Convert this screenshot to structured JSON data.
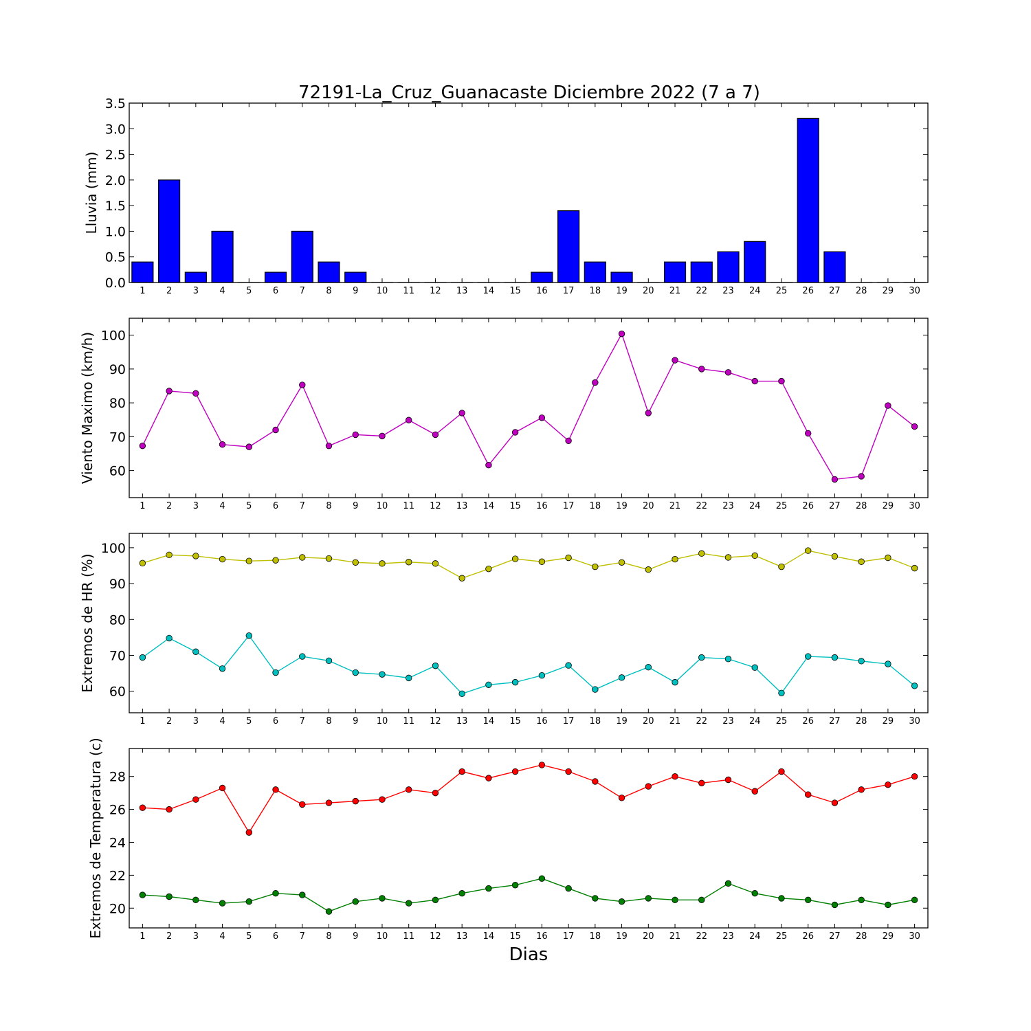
{
  "title": "72191-La_Cruz_Guanacaste Diciembre 2022  (7 a 7)",
  "xlabel": "Dias",
  "chart_data": [
    {
      "type": "bar",
      "ylabel": "Lluvia (mm)",
      "ylim": [
        0,
        3.5
      ],
      "yticks": [
        "0.0",
        "0.5",
        "1.0",
        "1.5",
        "2.0",
        "2.5",
        "3.0",
        "3.5"
      ],
      "x": [
        1,
        2,
        3,
        4,
        5,
        6,
        7,
        8,
        9,
        10,
        11,
        12,
        13,
        14,
        15,
        16,
        17,
        18,
        19,
        20,
        21,
        22,
        23,
        24,
        25,
        26,
        27,
        28,
        29,
        30
      ],
      "series": [
        {
          "color": "#0000ff",
          "values": [
            0.4,
            2.0,
            0.2,
            1.0,
            0,
            0.2,
            1.0,
            0.4,
            0.2,
            0,
            0,
            0,
            0,
            0,
            0,
            0.2,
            1.4,
            0.4,
            0.2,
            0,
            0.4,
            0.4,
            0.6,
            0.8,
            0,
            3.2,
            0.6,
            0,
            0,
            0
          ]
        }
      ]
    },
    {
      "type": "line",
      "ylabel": "Viento Maximo (km/h)",
      "ylim": [
        52,
        105
      ],
      "yticks": [
        "60",
        "70",
        "80",
        "90",
        "100"
      ],
      "x": [
        1,
        2,
        3,
        4,
        5,
        6,
        7,
        8,
        9,
        10,
        11,
        12,
        13,
        14,
        15,
        16,
        17,
        18,
        19,
        20,
        21,
        22,
        23,
        24,
        25,
        26,
        27,
        28,
        29,
        30
      ],
      "series": [
        {
          "color": "#bf00bf",
          "values": [
            67.3,
            83.5,
            82.8,
            67.7,
            67.0,
            72.0,
            85.3,
            67.3,
            70.6,
            70.2,
            74.9,
            70.6,
            77.0,
            61.6,
            71.3,
            75.6,
            68.8,
            86.0,
            100.4,
            77.0,
            92.6,
            90.0,
            89.0,
            86.4,
            86.4,
            71.0,
            57.4,
            58.3,
            79.2,
            73.0
          ]
        }
      ]
    },
    {
      "type": "line",
      "ylabel": "Extremos de HR (%)",
      "ylim": [
        54,
        104
      ],
      "yticks": [
        "60",
        "70",
        "80",
        "90",
        "100"
      ],
      "x": [
        1,
        2,
        3,
        4,
        5,
        6,
        7,
        8,
        9,
        10,
        11,
        12,
        13,
        14,
        15,
        16,
        17,
        18,
        19,
        20,
        21,
        22,
        23,
        24,
        25,
        26,
        27,
        28,
        29,
        30
      ],
      "series": [
        {
          "color": "#bfbf00",
          "values": [
            95.7,
            98.0,
            97.7,
            96.8,
            96.3,
            96.5,
            97.3,
            97.0,
            95.9,
            95.6,
            96.0,
            95.6,
            91.5,
            94.1,
            96.9,
            96.1,
            97.2,
            94.7,
            95.9,
            93.9,
            96.8,
            98.4,
            97.3,
            97.8,
            94.7,
            99.2,
            97.6,
            96.1,
            97.2,
            94.3
          ]
        },
        {
          "color": "#00bfbf",
          "values": [
            69.4,
            74.8,
            71.0,
            66.3,
            75.5,
            65.2,
            69.7,
            68.5,
            65.2,
            64.7,
            63.7,
            67.1,
            59.3,
            61.8,
            62.5,
            64.4,
            67.2,
            60.5,
            63.8,
            66.7,
            62.5,
            69.4,
            69.0,
            66.6,
            59.5,
            69.7,
            69.4,
            68.4,
            67.6,
            61.5
          ]
        }
      ]
    },
    {
      "type": "line",
      "ylabel": "Extremos de Temperatura (c)",
      "ylim": [
        18.8,
        29.7
      ],
      "yticks": [
        "20",
        "22",
        "24",
        "26",
        "28"
      ],
      "x": [
        1,
        2,
        3,
        4,
        5,
        6,
        7,
        8,
        9,
        10,
        11,
        12,
        13,
        14,
        15,
        16,
        17,
        18,
        19,
        20,
        21,
        22,
        23,
        24,
        25,
        26,
        27,
        28,
        29,
        30
      ],
      "series": [
        {
          "color": "#ff0000",
          "values": [
            26.1,
            26.0,
            26.6,
            27.3,
            24.6,
            27.2,
            26.3,
            26.4,
            26.5,
            26.6,
            27.2,
            27.0,
            28.3,
            27.9,
            28.3,
            28.7,
            28.3,
            27.7,
            26.7,
            27.4,
            28.0,
            27.6,
            27.8,
            27.1,
            28.3,
            26.9,
            26.4,
            27.2,
            27.5,
            28.0
          ]
        },
        {
          "color": "#008000",
          "values": [
            20.8,
            20.7,
            20.5,
            20.3,
            20.4,
            20.9,
            20.8,
            19.8,
            20.4,
            20.6,
            20.3,
            20.5,
            20.9,
            21.2,
            21.4,
            21.8,
            21.2,
            20.6,
            20.4,
            20.6,
            20.5,
            20.5,
            21.5,
            20.9,
            20.6,
            20.5,
            20.2,
            20.5,
            20.2,
            20.5
          ]
        }
      ]
    }
  ]
}
